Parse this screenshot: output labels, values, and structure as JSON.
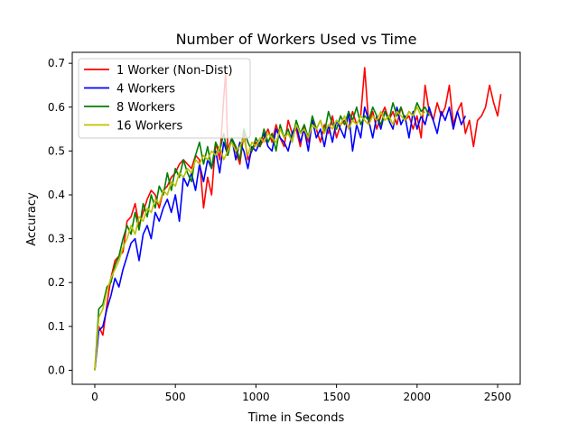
{
  "chart_data": {
    "type": "line",
    "title": "Number of Workers Used vs Time",
    "xlabel": "Time in Seconds",
    "ylabel": "Accuracy",
    "xlim": [
      -140,
      2640
    ],
    "ylim": [
      -0.032,
      0.725
    ],
    "xticks": [
      0,
      500,
      1000,
      1500,
      2000,
      2500
    ],
    "yticks": [
      0.0,
      0.1,
      0.2,
      0.3,
      0.4,
      0.5,
      0.6,
      0.7
    ],
    "ytick_labels": [
      "0.0",
      "0.1",
      "0.2",
      "0.3",
      "0.4",
      "0.5",
      "0.6",
      "0.7"
    ],
    "grid": false,
    "legend_position": "upper-left",
    "series": [
      {
        "name": "1 Worker (Non-Dist)",
        "color": "#ff0000",
        "x": [
          0,
          25,
          50,
          75,
          100,
          125,
          150,
          175,
          200,
          225,
          250,
          275,
          300,
          325,
          350,
          375,
          400,
          425,
          450,
          475,
          500,
          525,
          550,
          575,
          600,
          625,
          650,
          675,
          700,
          725,
          750,
          775,
          800,
          812,
          825,
          850,
          875,
          900,
          925,
          950,
          975,
          1000,
          1025,
          1050,
          1075,
          1100,
          1125,
          1150,
          1175,
          1200,
          1225,
          1250,
          1275,
          1300,
          1325,
          1350,
          1375,
          1400,
          1425,
          1450,
          1475,
          1500,
          1525,
          1550,
          1575,
          1600,
          1625,
          1650,
          1675,
          1700,
          1725,
          1750,
          1775,
          1800,
          1825,
          1850,
          1875,
          1900,
          1925,
          1950,
          1975,
          2000,
          2025,
          2050,
          2075,
          2100,
          2125,
          2150,
          2175,
          2200,
          2225,
          2250,
          2275,
          2300,
          2325,
          2350,
          2375,
          2400,
          2425,
          2450,
          2475,
          2500,
          2520
        ],
        "y": [
          0.0,
          0.1,
          0.08,
          0.15,
          0.21,
          0.25,
          0.26,
          0.27,
          0.34,
          0.35,
          0.38,
          0.33,
          0.36,
          0.39,
          0.41,
          0.4,
          0.37,
          0.41,
          0.42,
          0.44,
          0.45,
          0.47,
          0.48,
          0.47,
          0.46,
          0.49,
          0.48,
          0.37,
          0.44,
          0.4,
          0.52,
          0.48,
          0.62,
          0.68,
          0.5,
          0.53,
          0.5,
          0.47,
          0.54,
          0.48,
          0.5,
          0.52,
          0.51,
          0.53,
          0.55,
          0.52,
          0.56,
          0.53,
          0.51,
          0.57,
          0.54,
          0.55,
          0.51,
          0.56,
          0.52,
          0.57,
          0.55,
          0.52,
          0.56,
          0.54,
          0.58,
          0.53,
          0.56,
          0.57,
          0.55,
          0.59,
          0.56,
          0.58,
          0.69,
          0.56,
          0.59,
          0.55,
          0.58,
          0.6,
          0.57,
          0.59,
          0.56,
          0.6,
          0.57,
          0.58,
          0.55,
          0.58,
          0.53,
          0.65,
          0.59,
          0.57,
          0.61,
          0.58,
          0.6,
          0.65,
          0.56,
          0.59,
          0.61,
          0.54,
          0.57,
          0.51,
          0.57,
          0.58,
          0.6,
          0.65,
          0.61,
          0.58,
          0.63
        ]
      },
      {
        "name": "4 Workers",
        "color": "#0000ff",
        "x": [
          0,
          25,
          50,
          75,
          100,
          125,
          150,
          175,
          200,
          225,
          250,
          275,
          300,
          325,
          350,
          375,
          400,
          425,
          450,
          475,
          500,
          525,
          550,
          575,
          600,
          625,
          650,
          675,
          700,
          725,
          750,
          775,
          800,
          825,
          850,
          875,
          900,
          925,
          950,
          975,
          1000,
          1025,
          1050,
          1075,
          1100,
          1125,
          1150,
          1175,
          1200,
          1225,
          1250,
          1275,
          1300,
          1325,
          1350,
          1375,
          1400,
          1425,
          1450,
          1475,
          1500,
          1525,
          1550,
          1575,
          1600,
          1625,
          1650,
          1675,
          1700,
          1725,
          1750,
          1775,
          1800,
          1825,
          1850,
          1875,
          1900,
          1925,
          1950,
          1975,
          2000,
          2025,
          2050,
          2075,
          2100,
          2125,
          2150,
          2175,
          2200,
          2225,
          2250,
          2275,
          2300
        ],
        "y": [
          0.0,
          0.09,
          0.1,
          0.14,
          0.17,
          0.21,
          0.19,
          0.23,
          0.26,
          0.29,
          0.3,
          0.25,
          0.31,
          0.33,
          0.3,
          0.36,
          0.34,
          0.37,
          0.39,
          0.36,
          0.4,
          0.34,
          0.44,
          0.42,
          0.45,
          0.41,
          0.47,
          0.43,
          0.48,
          0.46,
          0.5,
          0.45,
          0.52,
          0.49,
          0.53,
          0.48,
          0.52,
          0.5,
          0.46,
          0.51,
          0.5,
          0.52,
          0.54,
          0.51,
          0.5,
          0.55,
          0.53,
          0.52,
          0.5,
          0.54,
          0.56,
          0.52,
          0.55,
          0.5,
          0.57,
          0.53,
          0.55,
          0.51,
          0.56,
          0.52,
          0.57,
          0.55,
          0.53,
          0.59,
          0.5,
          0.56,
          0.53,
          0.6,
          0.57,
          0.53,
          0.58,
          0.55,
          0.59,
          0.57,
          0.55,
          0.6,
          0.56,
          0.58,
          0.53,
          0.59,
          0.55,
          0.58,
          0.56,
          0.6,
          0.57,
          0.54,
          0.59,
          0.57,
          0.6,
          0.55,
          0.59,
          0.56,
          0.58
        ]
      },
      {
        "name": "8 Workers",
        "color": "#008000",
        "x": [
          0,
          25,
          50,
          75,
          100,
          125,
          150,
          175,
          200,
          225,
          250,
          275,
          300,
          325,
          350,
          375,
          400,
          425,
          450,
          475,
          500,
          525,
          550,
          575,
          600,
          625,
          650,
          675,
          700,
          725,
          750,
          775,
          800,
          825,
          850,
          875,
          900,
          925,
          950,
          975,
          1000,
          1025,
          1050,
          1075,
          1100,
          1125,
          1150,
          1175,
          1200,
          1225,
          1250,
          1275,
          1300,
          1325,
          1350,
          1375,
          1400,
          1425,
          1450,
          1475,
          1500,
          1525,
          1550,
          1575,
          1600,
          1625,
          1650,
          1675,
          1700,
          1725,
          1750,
          1775,
          1800,
          1825,
          1850,
          1875,
          1900,
          1925,
          1950,
          1975,
          2000,
          2025,
          2050,
          2075
        ],
        "y": [
          0.0,
          0.14,
          0.15,
          0.19,
          0.2,
          0.24,
          0.26,
          0.3,
          0.33,
          0.31,
          0.36,
          0.32,
          0.38,
          0.35,
          0.4,
          0.37,
          0.42,
          0.4,
          0.45,
          0.41,
          0.46,
          0.44,
          0.48,
          0.45,
          0.43,
          0.49,
          0.52,
          0.47,
          0.51,
          0.46,
          0.52,
          0.5,
          0.54,
          0.49,
          0.53,
          0.51,
          0.48,
          0.55,
          0.52,
          0.5,
          0.53,
          0.51,
          0.55,
          0.52,
          0.54,
          0.5,
          0.56,
          0.53,
          0.55,
          0.52,
          0.57,
          0.54,
          0.56,
          0.53,
          0.58,
          0.55,
          0.57,
          0.54,
          0.59,
          0.56,
          0.55,
          0.58,
          0.56,
          0.59,
          0.57,
          0.6,
          0.56,
          0.58,
          0.57,
          0.6,
          0.58,
          0.56,
          0.59,
          0.57,
          0.61,
          0.58,
          0.6,
          0.57,
          0.59,
          0.58,
          0.61,
          0.59,
          0.6,
          0.58
        ]
      },
      {
        "name": "16 Workers",
        "color": "#bfbf00",
        "x": [
          0,
          25,
          50,
          75,
          100,
          125,
          150,
          175,
          200,
          225,
          250,
          275,
          300,
          325,
          350,
          375,
          400,
          425,
          450,
          475,
          500,
          525,
          550,
          575,
          600,
          625,
          650,
          675,
          700,
          725,
          750,
          775,
          800,
          825,
          850,
          875,
          900,
          925,
          950,
          975,
          1000,
          1025,
          1050,
          1075,
          1100,
          1125,
          1150,
          1175,
          1200,
          1225,
          1250,
          1275,
          1300,
          1325,
          1350,
          1375,
          1400,
          1425,
          1450,
          1475,
          1500,
          1525,
          1550,
          1575,
          1600,
          1625,
          1650,
          1675,
          1700,
          1725,
          1750,
          1775,
          1800,
          1825,
          1850,
          1875,
          1900,
          1925,
          1950,
          1975,
          2000,
          2025,
          2050
        ],
        "y": [
          0.0,
          0.12,
          0.14,
          0.18,
          0.21,
          0.23,
          0.25,
          0.28,
          0.3,
          0.33,
          0.31,
          0.35,
          0.34,
          0.37,
          0.36,
          0.39,
          0.38,
          0.41,
          0.4,
          0.43,
          0.42,
          0.45,
          0.44,
          0.46,
          0.45,
          0.48,
          0.47,
          0.49,
          0.48,
          0.5,
          0.49,
          0.51,
          0.48,
          0.5,
          0.52,
          0.5,
          0.51,
          0.53,
          0.49,
          0.52,
          0.51,
          0.53,
          0.52,
          0.54,
          0.53,
          0.52,
          0.55,
          0.53,
          0.54,
          0.52,
          0.56,
          0.54,
          0.55,
          0.53,
          0.56,
          0.55,
          0.57,
          0.54,
          0.56,
          0.55,
          0.57,
          0.56,
          0.58,
          0.55,
          0.57,
          0.56,
          0.58,
          0.57,
          0.56,
          0.58,
          0.57,
          0.59,
          0.57,
          0.58,
          0.56,
          0.59,
          0.58,
          0.57,
          0.59,
          0.58,
          0.6,
          0.58,
          0.59
        ]
      }
    ]
  }
}
